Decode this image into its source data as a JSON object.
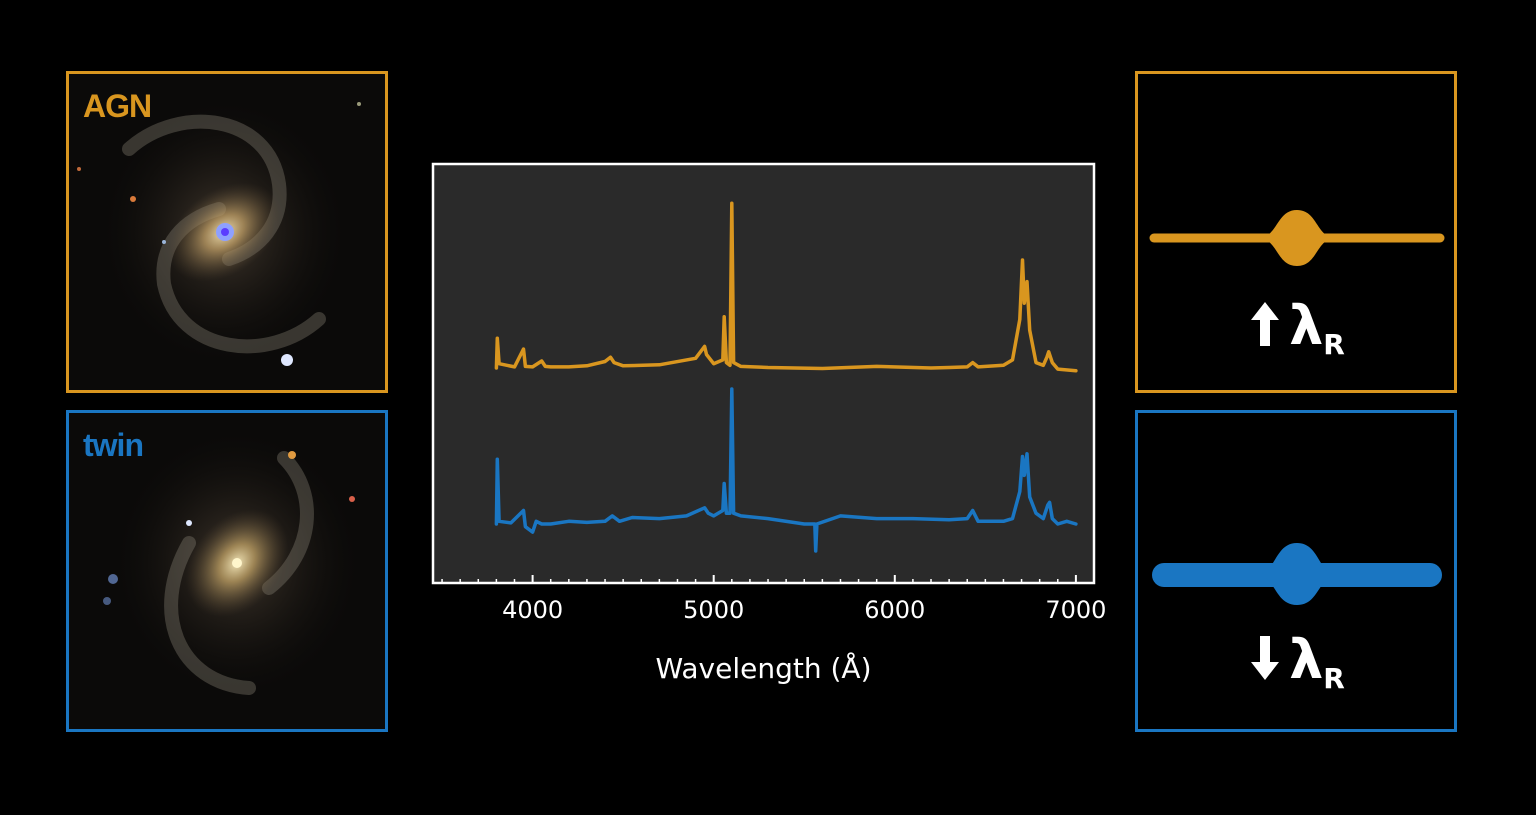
{
  "colors": {
    "agn": "#d9961f",
    "twin": "#1a76c2",
    "plot_bg": "#2a2a2a",
    "frame": "#ffffff",
    "background": "#000000"
  },
  "panels": {
    "agn_galaxy": {
      "label": "AGN"
    },
    "twin_galaxy": {
      "label": "twin"
    }
  },
  "kinematics": {
    "agn": {
      "arrow": "up",
      "symbol": "λ",
      "subscript": "R"
    },
    "twin": {
      "arrow": "down",
      "symbol": "λ",
      "subscript": "R"
    }
  },
  "chart_data": {
    "type": "line",
    "title": "",
    "xlabel": "Wavelength (Å)",
    "ylabel": "",
    "xlim": [
      3450,
      7100
    ],
    "xticks": [
      4000,
      5000,
      6000,
      7000
    ],
    "xtick_labels": [
      "4000",
      "5000",
      "6000",
      "7000"
    ],
    "y_axis_shown": false,
    "grid": false,
    "legend": "none",
    "series": [
      {
        "color": "#d9961f",
        "x": [
          3800,
          3805,
          3815,
          3900,
          3950,
          3960,
          4000,
          4050,
          4070,
          4100,
          4200,
          4300,
          4400,
          4430,
          4450,
          4500,
          4700,
          4900,
          4950,
          4960,
          5000,
          5050,
          5058,
          5070,
          5090,
          5100,
          5110,
          5150,
          5300,
          5600,
          5900,
          6200,
          6300,
          6400,
          6430,
          6460,
          6600,
          6650,
          6690,
          6705,
          6715,
          6730,
          6745,
          6780,
          6820,
          6840,
          6850,
          6870,
          6900,
          7000
        ],
        "y": [
          0.0,
          0.55,
          0.08,
          0.02,
          0.35,
          0.03,
          0.02,
          0.13,
          0.03,
          0.02,
          0.02,
          0.04,
          0.12,
          0.2,
          0.1,
          0.04,
          0.06,
          0.18,
          0.4,
          0.25,
          0.08,
          0.15,
          0.95,
          0.1,
          0.05,
          3.05,
          0.1,
          0.03,
          0.01,
          -0.01,
          0.03,
          0.0,
          0.01,
          0.02,
          0.1,
          0.02,
          0.05,
          0.15,
          0.9,
          2.0,
          1.2,
          1.6,
          0.7,
          0.1,
          0.05,
          0.2,
          0.3,
          0.1,
          -0.02,
          -0.05
        ]
      },
      {
        "color": "#1a76c2",
        "x": [
          3800,
          3805,
          3815,
          3880,
          3950,
          3960,
          4000,
          4020,
          4050,
          4100,
          4200,
          4300,
          4400,
          4440,
          4480,
          4550,
          4700,
          4850,
          4950,
          4970,
          5000,
          5050,
          5058,
          5070,
          5090,
          5100,
          5110,
          5150,
          5300,
          5500,
          5558,
          5563,
          5570,
          5700,
          5900,
          6100,
          6300,
          6400,
          6430,
          6460,
          6600,
          6650,
          6690,
          6705,
          6715,
          6730,
          6745,
          6780,
          6820,
          6845,
          6855,
          6870,
          6900,
          6950,
          7000
        ],
        "y": [
          0.0,
          1.2,
          0.05,
          0.02,
          0.25,
          -0.05,
          -0.15,
          0.05,
          0.0,
          0.0,
          0.05,
          0.03,
          0.05,
          0.15,
          0.05,
          0.12,
          0.1,
          0.15,
          0.3,
          0.2,
          0.15,
          0.25,
          0.75,
          0.2,
          0.2,
          2.5,
          0.2,
          0.15,
          0.1,
          0.0,
          0.0,
          -0.5,
          0.0,
          0.15,
          0.1,
          0.1,
          0.08,
          0.1,
          0.25,
          0.05,
          0.05,
          0.1,
          0.6,
          1.25,
          0.9,
          1.3,
          0.5,
          0.2,
          0.1,
          0.35,
          0.4,
          0.1,
          0.0,
          0.05,
          0.0
        ]
      }
    ]
  }
}
